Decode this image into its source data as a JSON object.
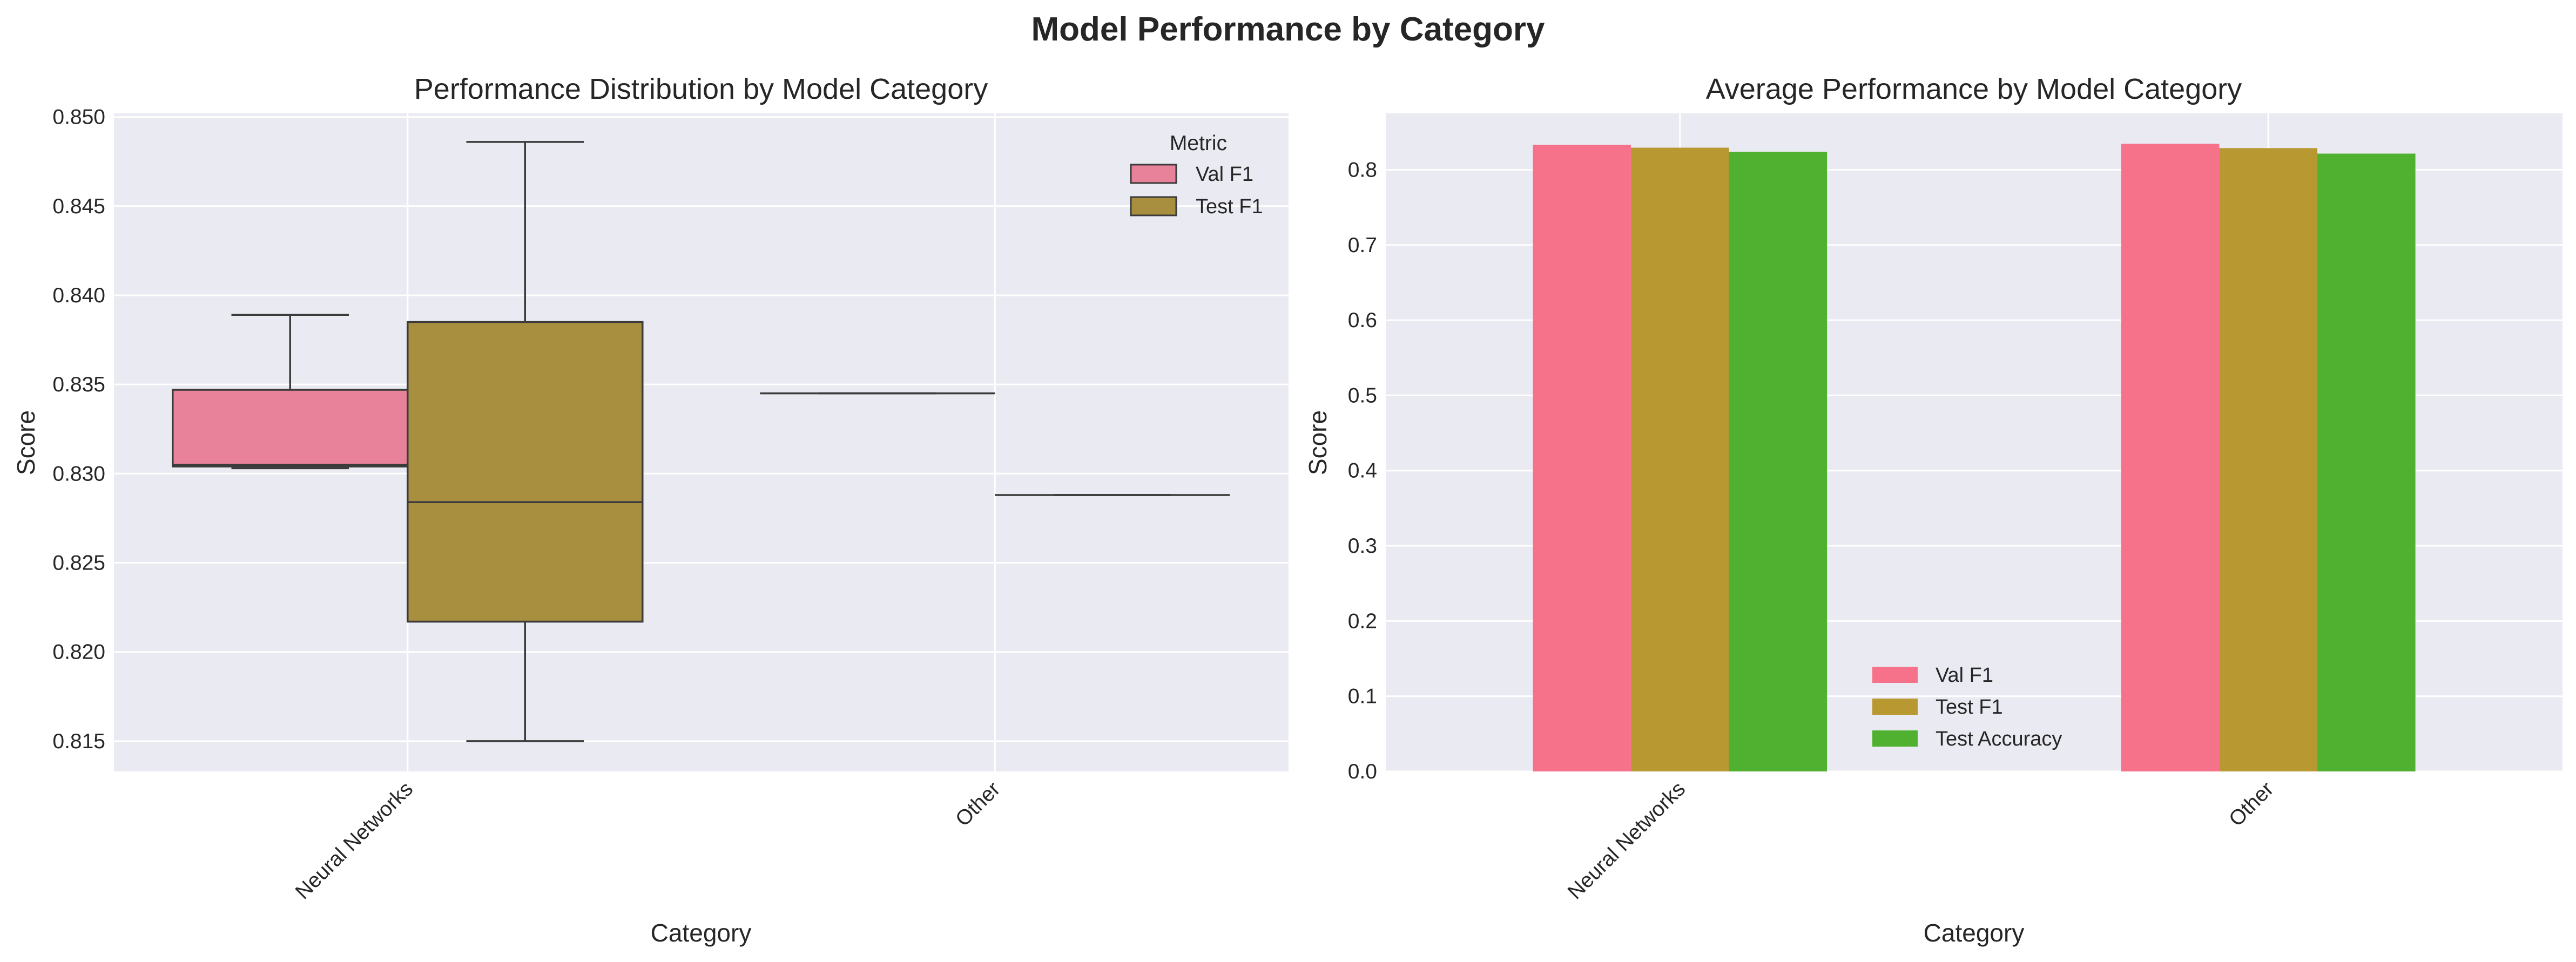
{
  "figure": {
    "title": "Model Performance by Category"
  },
  "colors": {
    "val_f1": "#e8829a",
    "test_f1": "#a88f40",
    "test_accuracy": "#50b131",
    "bar_val_f1": "#f5728a",
    "bar_test_f1": "#b89831",
    "panel_bg": "#eaeaf2",
    "grid": "#ffffff",
    "line": "#3b3b3b"
  },
  "chart_data": [
    {
      "type": "box",
      "title": "Performance Distribution by Model Category",
      "xlabel": "Category",
      "ylabel": "Score",
      "categories": [
        "Neural Networks",
        "Other"
      ],
      "ylim": [
        0.8133,
        0.8502
      ],
      "yticks": [
        0.815,
        0.82,
        0.825,
        0.83,
        0.835,
        0.84,
        0.845,
        0.85
      ],
      "ytick_labels": [
        "0.815",
        "0.820",
        "0.825",
        "0.830",
        "0.835",
        "0.840",
        "0.845",
        "0.850"
      ],
      "grid": true,
      "legend": {
        "title": "Metric",
        "placement": "top-right",
        "entries": [
          "Val F1",
          "Test F1"
        ]
      },
      "series": [
        {
          "name": "Val F1",
          "boxes": [
            {
              "category": "Neural Networks",
              "whislo": 0.8303,
              "q1": 0.8304,
              "med": 0.8305,
              "q3": 0.8347,
              "whishi": 0.8389
            },
            {
              "category": "Other",
              "whislo": 0.8345,
              "q1": 0.8345,
              "med": 0.8345,
              "q3": 0.8345,
              "whishi": 0.8345
            }
          ]
        },
        {
          "name": "Test F1",
          "boxes": [
            {
              "category": "Neural Networks",
              "whislo": 0.815,
              "q1": 0.8217,
              "med": 0.8284,
              "q3": 0.8385,
              "whishi": 0.8486
            },
            {
              "category": "Other",
              "whislo": 0.8288,
              "q1": 0.8288,
              "med": 0.8288,
              "q3": 0.8288,
              "whishi": 0.8288
            }
          ]
        }
      ]
    },
    {
      "type": "bar",
      "title": "Average Performance by Model Category",
      "xlabel": "Category",
      "ylabel": "Score",
      "categories": [
        "Neural Networks",
        "Other"
      ],
      "ylim": [
        0,
        0.875
      ],
      "yticks": [
        0,
        0.1,
        0.2,
        0.3,
        0.4,
        0.5,
        0.6,
        0.7,
        0.8
      ],
      "ytick_labels": [
        "0.0",
        "0.1",
        "0.2",
        "0.3",
        "0.4",
        "0.5",
        "0.6",
        "0.7",
        "0.8"
      ],
      "grid": true,
      "legend": {
        "placement": "lower-center",
        "entries": [
          "Val F1",
          "Test F1",
          "Test Accuracy"
        ]
      },
      "series": [
        {
          "name": "Val F1",
          "values": [
            0.8331,
            0.8345
          ]
        },
        {
          "name": "Test F1",
          "values": [
            0.8294,
            0.8288
          ]
        },
        {
          "name": "Test Accuracy",
          "values": [
            0.8239,
            0.8215
          ]
        }
      ]
    }
  ]
}
